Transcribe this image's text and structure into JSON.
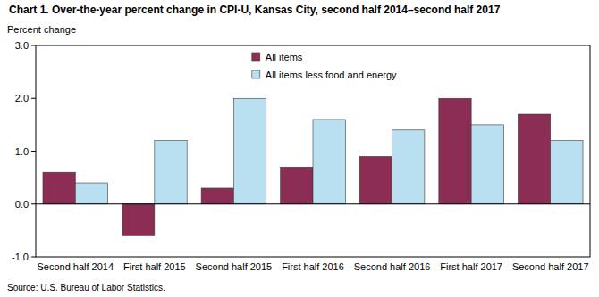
{
  "chart_data": {
    "type": "bar",
    "title": "Chart 1. Over-the-year percent change in CPI-U, Kansas City, second half 2014–second half 2017",
    "y_label": "Percent change",
    "annotations": [
      "Source: U.S. Bureau of Labor Statistics."
    ],
    "categories": [
      "Second half 2014",
      "First half 2015",
      "Second half 2015",
      "First half 2016",
      "Second half 2016",
      "First half 2017",
      "Second half 2017"
    ],
    "series": [
      {
        "name": "All items",
        "color": "#8c2d55",
        "values": [
          0.6,
          -0.6,
          0.3,
          0.7,
          0.9,
          2.0,
          1.7
        ]
      },
      {
        "name": "All items less food and energy",
        "color": "#b9dff0",
        "values": [
          0.4,
          1.2,
          2.0,
          1.6,
          1.4,
          1.5,
          1.2
        ]
      }
    ],
    "ylim": [
      -1.0,
      3.0
    ],
    "yticks": [
      {
        "value": -1.0,
        "label": "-1.0"
      },
      {
        "value": 0.0,
        "label": "0.0"
      },
      {
        "value": 1.0,
        "label": "1.0"
      },
      {
        "value": 2.0,
        "label": "2.0"
      },
      {
        "value": 3.0,
        "label": "3.0"
      }
    ],
    "grid": false,
    "legend": "top"
  }
}
